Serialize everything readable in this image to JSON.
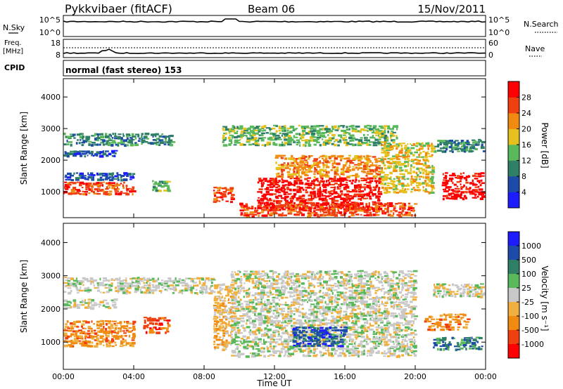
{
  "header": {
    "station": "Pykkvibaer (fitACF)",
    "beam": "Beam 06",
    "date": "15/Nov/2011"
  },
  "status_panels": {
    "nsky_label": "N.Sky",
    "nsky_ticks": [
      "10^5",
      "10^0"
    ],
    "nsearch_label": "N.Search",
    "nsearch_ticks": [
      "10^5",
      "10^0"
    ],
    "freq_label_top": "Freq.",
    "freq_label_bottom": "[MHz]",
    "freq_ticks": [
      "18",
      "8"
    ],
    "nave_label": "Nave",
    "nave_ticks": [
      "60",
      "0"
    ],
    "cpid_label": "CPID",
    "cpid_text": "normal (fast stereo) 153"
  },
  "chart_data": [
    {
      "type": "heatmap",
      "name": "power-panel",
      "ylabel": "Slant Range [km]",
      "xlabel": "",
      "ylim": [
        180,
        4580
      ],
      "xlim": [
        0,
        24
      ],
      "y_ticks": [
        "1000",
        "2000",
        "3000",
        "4000"
      ],
      "y_tick_values": [
        1000,
        2000,
        3000,
        4000
      ],
      "colorbar": {
        "label": "Power [dB]",
        "tick_labels": [
          "4",
          "8",
          "12",
          "16",
          "20",
          "24",
          "28"
        ],
        "colors": [
          "#1c1cff",
          "#1c4ca8",
          "#2f7f67",
          "#58b85a",
          "#e6c01c",
          "#f08a10",
          "#f04010",
          "#ff0000"
        ]
      },
      "bands": [
        {
          "t0": 0.0,
          "t1": 4.0,
          "r0": 950,
          "r1": 1350,
          "level": 6
        },
        {
          "t0": 0.0,
          "t1": 4.0,
          "r0": 1400,
          "r1": 1650,
          "level": 1
        },
        {
          "t0": 0.0,
          "t1": 6.2,
          "r0": 2500,
          "r1": 2900,
          "level": 2
        },
        {
          "t0": 0.0,
          "t1": 3.0,
          "r0": 2150,
          "r1": 2350,
          "level": 1
        },
        {
          "t0": 5.0,
          "t1": 6.0,
          "r0": 1050,
          "r1": 1400,
          "level": 3
        },
        {
          "t0": 8.5,
          "t1": 9.6,
          "r0": 700,
          "r1": 1200,
          "level": 6
        },
        {
          "t0": 9.0,
          "t1": 19.0,
          "r0": 2500,
          "r1": 3150,
          "level": 3
        },
        {
          "t0": 11.0,
          "t1": 18.0,
          "r0": 450,
          "r1": 1500,
          "level": 7
        },
        {
          "t0": 12.0,
          "t1": 18.0,
          "r0": 1500,
          "r1": 2200,
          "level": 5
        },
        {
          "t0": 18.0,
          "t1": 21.0,
          "r0": 1000,
          "r1": 2600,
          "level": 4
        },
        {
          "t0": 21.5,
          "t1": 24.0,
          "r0": 800,
          "r1": 1650,
          "level": 7
        },
        {
          "t0": 21.0,
          "t1": 24.0,
          "r0": 2300,
          "r1": 2700,
          "level": 2
        },
        {
          "t0": 10.0,
          "t1": 20.0,
          "r0": 200,
          "r1": 700,
          "level": 6
        }
      ]
    },
    {
      "type": "heatmap",
      "name": "velocity-panel",
      "ylabel": "Slant Range [km]",
      "xlabel": "Time UT",
      "ylim": [
        180,
        4580
      ],
      "xlim": [
        0,
        24
      ],
      "y_ticks": [
        "1000",
        "2000",
        "3000",
        "4000"
      ],
      "y_tick_values": [
        1000,
        2000,
        3000,
        4000
      ],
      "x_ticks": [
        "00:00",
        "04:00",
        "08:00",
        "12:00",
        "16:00",
        "20:00",
        "00:00"
      ],
      "x_tick_values": [
        0,
        4,
        8,
        12,
        16,
        20,
        24
      ],
      "colorbar": {
        "label": "Velocity [m s⁻¹]",
        "tick_labels": [
          "1000",
          "500",
          "100",
          "25",
          "-25",
          "-100",
          "-500",
          "-1000"
        ],
        "colors": [
          "#1c1cff",
          "#1c4ca8",
          "#2f7f67",
          "#58b85a",
          "#c8c8c8",
          "#f0b040",
          "#f08a10",
          "#f04010",
          "#ff0000"
        ]
      },
      "bands": [
        {
          "t0": 0.0,
          "t1": 4.0,
          "r0": 900,
          "r1": 1700,
          "level": 6
        },
        {
          "t0": 0.0,
          "t1": 8.5,
          "r0": 2500,
          "r1": 3000,
          "level": 4
        },
        {
          "t0": 0.0,
          "t1": 3.0,
          "r0": 2050,
          "r1": 2350,
          "level": 4
        },
        {
          "t0": 4.5,
          "t1": 6.0,
          "r0": 1300,
          "r1": 1800,
          "level": 7
        },
        {
          "t0": 8.5,
          "t1": 9.6,
          "r0": 800,
          "r1": 2800,
          "level": 5
        },
        {
          "t0": 9.5,
          "t1": 20.0,
          "r0": 600,
          "r1": 3200,
          "level": 4
        },
        {
          "t0": 13.0,
          "t1": 16.0,
          "r0": 900,
          "r1": 1500,
          "level": 1
        },
        {
          "t0": 20.5,
          "t1": 23.0,
          "r0": 1400,
          "r1": 1900,
          "level": 6
        },
        {
          "t0": 21.0,
          "t1": 24.0,
          "r0": 800,
          "r1": 1200,
          "level": 2
        },
        {
          "t0": 21.0,
          "t1": 24.0,
          "r0": 2400,
          "r1": 2800,
          "level": 4
        }
      ]
    }
  ]
}
